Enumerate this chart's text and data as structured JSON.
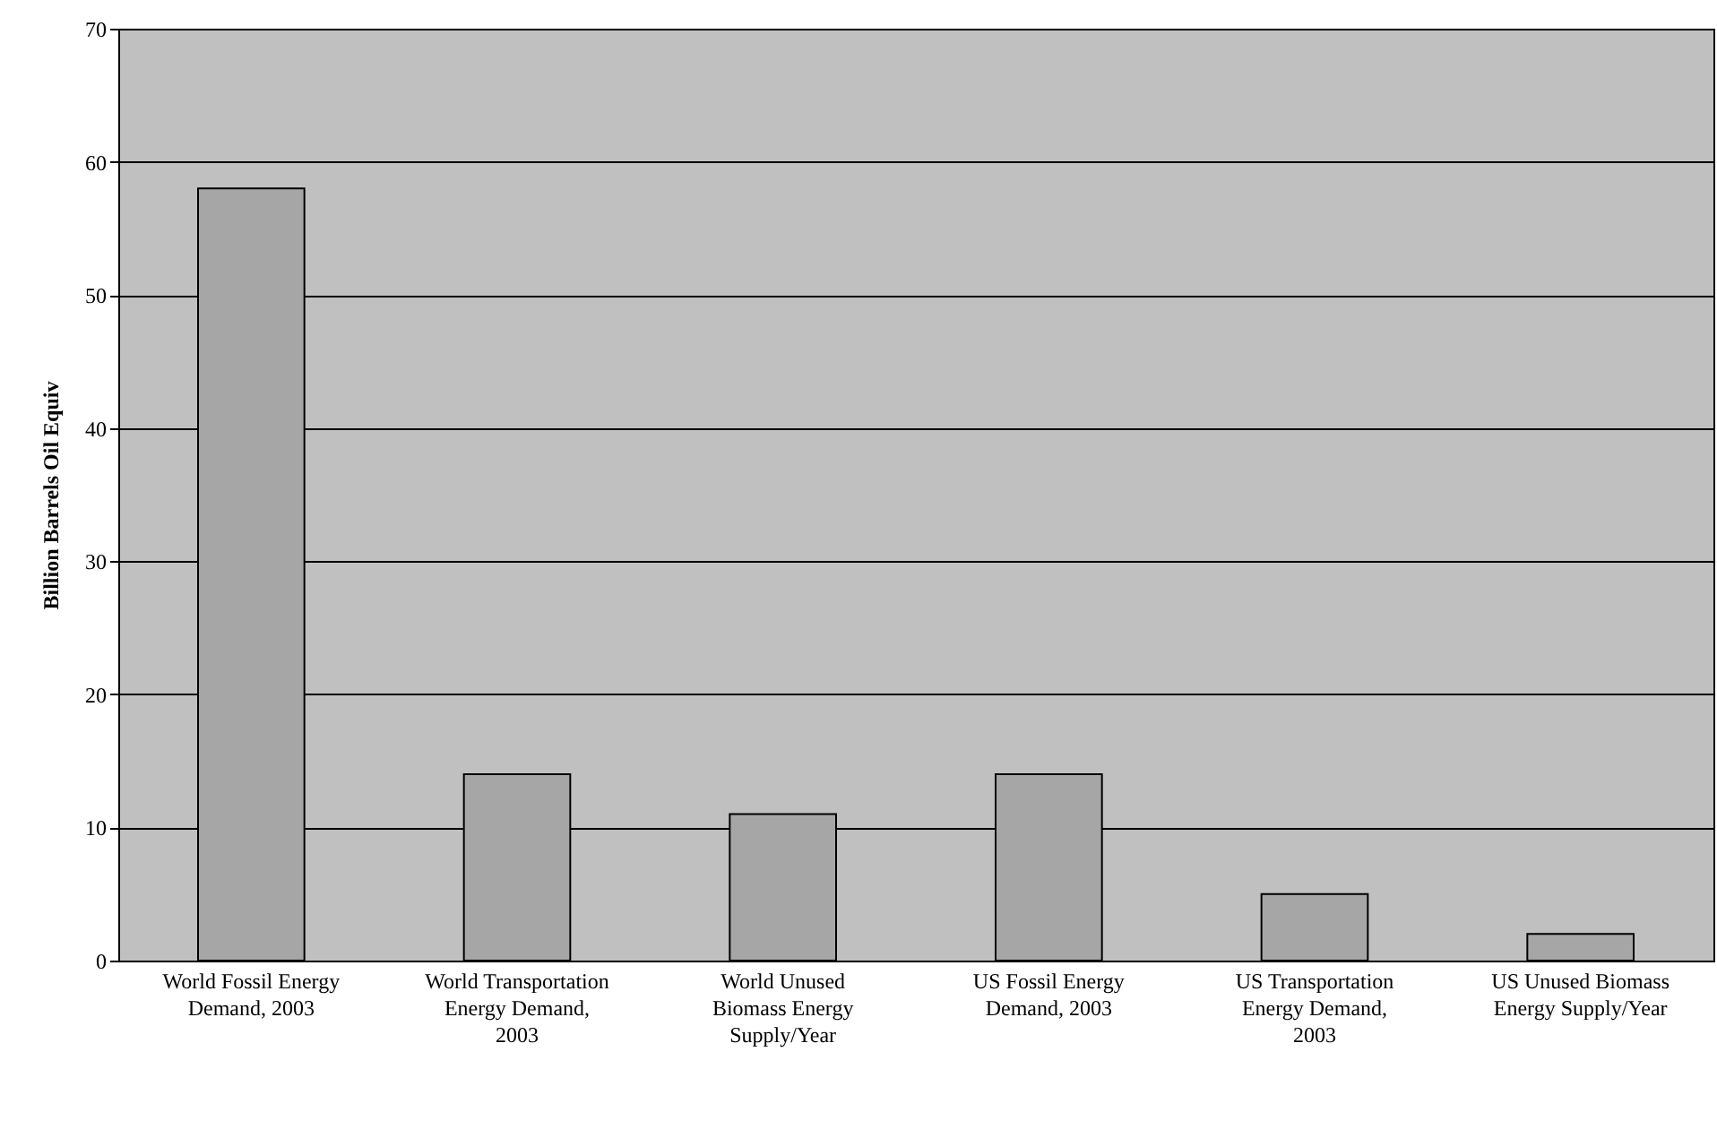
{
  "chart_data": {
    "type": "bar",
    "ylabel": "Billion Barrels Oil Equiv",
    "categories": [
      "World Fossil Energy Demand, 2003",
      "World Transportation Energy Demand, 2003",
      "World Unused Biomass Energy Supply/Year",
      "US Fossil Energy Demand, 2003",
      "US Transportation Energy Demand, 2003",
      "US Unused Biomass Energy Supply/Year"
    ],
    "values": [
      58,
      14,
      11,
      14,
      5,
      2
    ],
    "color": "#a6a6a6",
    "ylim": [
      0,
      70
    ],
    "yticks": [
      0,
      10,
      20,
      30,
      40,
      50,
      60,
      70
    ],
    "grid": "y"
  }
}
